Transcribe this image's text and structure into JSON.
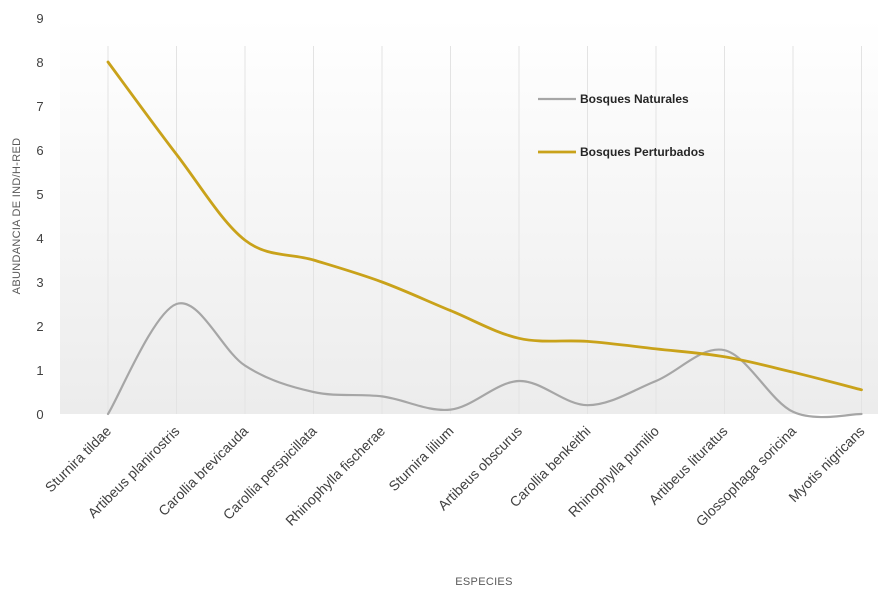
{
  "chart_data": {
    "type": "line",
    "xlabel": "ESPECIES",
    "ylabel": "ABUNDANCIA DE IND/H-RED",
    "ylim": [
      0,
      9
    ],
    "yticks": [
      "0",
      "1",
      "2",
      "3",
      "4",
      "5",
      "6",
      "7",
      "8",
      "9"
    ],
    "categories": [
      "Sturnira tildae",
      "Artibeus planirostris",
      "Carollia brevicauda",
      "Carollia perspicillata",
      "Rhinophylla fischerae",
      "Sturnira lilium",
      "Artibeus obscurus",
      "Carollia benkeithi",
      "Rhinophylla pumilio",
      "Artibeus lituratus",
      "Glossophaga soricina",
      "Myotis nigricans"
    ],
    "series": [
      {
        "name": "Bosques Naturales",
        "color": "#a6a6a6",
        "values": [
          0,
          2.5,
          1.1,
          0.5,
          0.4,
          0.1,
          0.75,
          0.2,
          0.75,
          1.45,
          0.05,
          0
        ]
      },
      {
        "name": "Bosques Perturbados",
        "color": "#c9a21a",
        "values": [
          8,
          5.9,
          3.95,
          3.5,
          3.0,
          2.35,
          1.72,
          1.65,
          1.48,
          1.3,
          0.95,
          0.55
        ]
      }
    ],
    "legend_position": "top-right",
    "grid": "vertical"
  }
}
